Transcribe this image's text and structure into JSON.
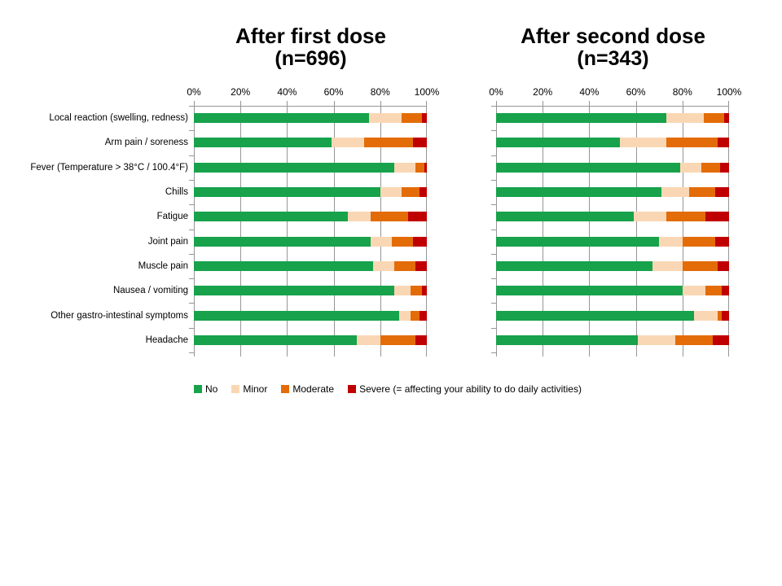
{
  "page": {
    "background": "#ffffff"
  },
  "colors": {
    "no": "#17A24B",
    "minor": "#FAD7B4",
    "moderate": "#E36C09",
    "severe": "#C00000",
    "gridline": "#969696",
    "text": "#000000"
  },
  "categories": [
    "Local reaction (swelling, redness)",
    "Arm pain / soreness",
    "Fever (Temperature > 38°C / 100.4°F)",
    "Chills",
    "Fatigue",
    "Joint pain",
    "Muscle pain",
    "Nausea / vomiting",
    "Other gastro-intestinal symptoms",
    "Headache"
  ],
  "legend": {
    "items": [
      {
        "label": "No",
        "series": "no"
      },
      {
        "label": "Minor",
        "series": "minor"
      },
      {
        "label": "Moderate",
        "series": "moderate"
      },
      {
        "label": "Severe (= affecting your ability to do daily activities)",
        "series": "severe"
      }
    ]
  },
  "chart_data": [
    {
      "type": "bar",
      "orientation": "horizontal-stacked",
      "title": "After first dose",
      "subtitle": "(n=696)",
      "unit": "percent",
      "xlim": [
        0,
        100
      ],
      "x_ticks": [
        "0%",
        "20%",
        "40%",
        "60%",
        "80%",
        "100%"
      ],
      "grid": "vertical",
      "legend_position": "bottom",
      "categories": [
        "Local reaction (swelling, redness)",
        "Arm pain / soreness",
        "Fever (Temperature > 38°C / 100.4°F)",
        "Chills",
        "Fatigue",
        "Joint pain",
        "Muscle pain",
        "Nausea / vomiting",
        "Other gastro-intestinal symptoms",
        "Headache"
      ],
      "series": [
        {
          "name": "No",
          "color": "#17A24B",
          "values": [
            75,
            59,
            86,
            80,
            66,
            76,
            77,
            86,
            88,
            70
          ]
        },
        {
          "name": "Minor",
          "color": "#FAD7B4",
          "values": [
            14,
            14,
            9,
            9,
            10,
            9,
            9,
            7,
            5,
            10
          ]
        },
        {
          "name": "Moderate",
          "color": "#E36C09",
          "values": [
            9,
            21,
            4,
            8,
            16,
            9,
            9,
            5,
            4,
            15
          ]
        },
        {
          "name": "Severe",
          "color": "#C00000",
          "values": [
            2,
            6,
            1,
            3,
            8,
            6,
            5,
            2,
            3,
            5
          ]
        }
      ]
    },
    {
      "type": "bar",
      "orientation": "horizontal-stacked",
      "title": "After second dose",
      "subtitle": "(n=343)",
      "unit": "percent",
      "xlim": [
        0,
        100
      ],
      "x_ticks": [
        "0%",
        "20%",
        "40%",
        "60%",
        "80%",
        "100%"
      ],
      "grid": "vertical",
      "legend_position": "bottom",
      "categories": [
        "Local reaction (swelling, redness)",
        "Arm pain / soreness",
        "Fever (Temperature > 38°C / 100.4°F)",
        "Chills",
        "Fatigue",
        "Joint pain",
        "Muscle pain",
        "Nausea / vomiting",
        "Other gastro-intestinal symptoms",
        "Headache"
      ],
      "series": [
        {
          "name": "No",
          "color": "#17A24B",
          "values": [
            73,
            53,
            79,
            71,
            59,
            70,
            67,
            80,
            85,
            61
          ]
        },
        {
          "name": "Minor",
          "color": "#FAD7B4",
          "values": [
            16,
            20,
            9,
            12,
            14,
            10,
            13,
            10,
            10,
            16
          ]
        },
        {
          "name": "Moderate",
          "color": "#E36C09",
          "values": [
            9,
            22,
            8,
            11,
            17,
            14,
            15,
            7,
            2,
            16
          ]
        },
        {
          "name": "Severe",
          "color": "#C00000",
          "values": [
            2,
            5,
            4,
            6,
            10,
            6,
            5,
            3,
            3,
            7
          ]
        }
      ]
    }
  ]
}
